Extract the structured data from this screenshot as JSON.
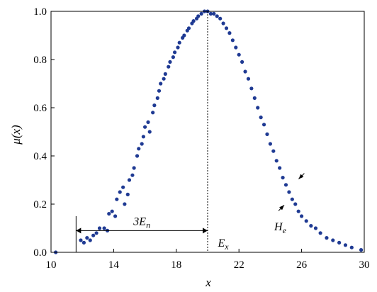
{
  "chart_data": {
    "type": "scatter",
    "xlabel": "x",
    "ylabel": "μ(x)",
    "xlim": [
      10,
      30
    ],
    "ylim": [
      0.0,
      1.0
    ],
    "x_ticks": [
      "10",
      "14",
      "18",
      "22",
      "26",
      "30"
    ],
    "y_ticks": [
      "0.0",
      "0.2",
      "0.4",
      "0.6",
      "0.8",
      "1.0"
    ],
    "grid": false,
    "legend": "none",
    "marker_color": "#1f3a93",
    "Ex": 20,
    "En": 2.8,
    "He": 0.25,
    "points": [
      [
        10.3,
        0.0
      ],
      [
        11.9,
        0.05
      ],
      [
        12.1,
        0.04
      ],
      [
        12.3,
        0.06
      ],
      [
        12.5,
        0.05
      ],
      [
        12.7,
        0.07
      ],
      [
        12.9,
        0.08
      ],
      [
        13.1,
        0.1
      ],
      [
        13.4,
        0.1
      ],
      [
        13.6,
        0.09
      ],
      [
        13.7,
        0.16
      ],
      [
        13.9,
        0.17
      ],
      [
        14.1,
        0.15
      ],
      [
        14.2,
        0.22
      ],
      [
        14.4,
        0.25
      ],
      [
        14.6,
        0.27
      ],
      [
        14.7,
        0.2
      ],
      [
        14.9,
        0.24
      ],
      [
        15.0,
        0.3
      ],
      [
        15.2,
        0.32
      ],
      [
        15.3,
        0.35
      ],
      [
        15.5,
        0.4
      ],
      [
        15.6,
        0.43
      ],
      [
        15.8,
        0.45
      ],
      [
        15.9,
        0.48
      ],
      [
        16.0,
        0.52
      ],
      [
        16.2,
        0.54
      ],
      [
        16.3,
        0.5
      ],
      [
        16.5,
        0.58
      ],
      [
        16.6,
        0.61
      ],
      [
        16.8,
        0.64
      ],
      [
        16.9,
        0.67
      ],
      [
        17.0,
        0.7
      ],
      [
        17.2,
        0.72
      ],
      [
        17.3,
        0.74
      ],
      [
        17.5,
        0.77
      ],
      [
        17.6,
        0.79
      ],
      [
        17.8,
        0.81
      ],
      [
        17.9,
        0.83
      ],
      [
        18.1,
        0.85
      ],
      [
        18.2,
        0.87
      ],
      [
        18.4,
        0.89
      ],
      [
        18.5,
        0.9
      ],
      [
        18.7,
        0.92
      ],
      [
        18.8,
        0.93
      ],
      [
        19.0,
        0.95
      ],
      [
        19.1,
        0.96
      ],
      [
        19.3,
        0.97
      ],
      [
        19.4,
        0.98
      ],
      [
        19.6,
        0.99
      ],
      [
        19.8,
        1.0
      ],
      [
        20.0,
        1.0
      ],
      [
        20.2,
        0.99
      ],
      [
        20.4,
        0.99
      ],
      [
        20.6,
        0.98
      ],
      [
        20.8,
        0.97
      ],
      [
        21.0,
        0.95
      ],
      [
        21.2,
        0.93
      ],
      [
        21.4,
        0.91
      ],
      [
        21.6,
        0.88
      ],
      [
        21.8,
        0.85
      ],
      [
        22.0,
        0.82
      ],
      [
        22.2,
        0.79
      ],
      [
        22.4,
        0.75
      ],
      [
        22.6,
        0.72
      ],
      [
        22.8,
        0.68
      ],
      [
        23.0,
        0.64
      ],
      [
        23.2,
        0.6
      ],
      [
        23.4,
        0.56
      ],
      [
        23.6,
        0.53
      ],
      [
        23.8,
        0.49
      ],
      [
        24.0,
        0.45
      ],
      [
        24.2,
        0.42
      ],
      [
        24.4,
        0.38
      ],
      [
        24.6,
        0.35
      ],
      [
        24.8,
        0.31
      ],
      [
        25.0,
        0.28
      ],
      [
        25.2,
        0.25
      ],
      [
        25.4,
        0.22
      ],
      [
        25.6,
        0.2
      ],
      [
        25.8,
        0.17
      ],
      [
        26.0,
        0.15
      ],
      [
        26.3,
        0.13
      ],
      [
        26.6,
        0.11
      ],
      [
        26.9,
        0.1
      ],
      [
        27.2,
        0.08
      ],
      [
        27.6,
        0.06
      ],
      [
        28.0,
        0.05
      ],
      [
        28.4,
        0.04
      ],
      [
        28.8,
        0.03
      ],
      [
        29.2,
        0.02
      ],
      [
        29.8,
        0.01
      ]
    ],
    "annotations": {
      "three_en": "3E",
      "three_en_sub": "n",
      "ex_label": "E",
      "ex_sub": "x",
      "he_label": "H",
      "he_sub": "e"
    }
  }
}
